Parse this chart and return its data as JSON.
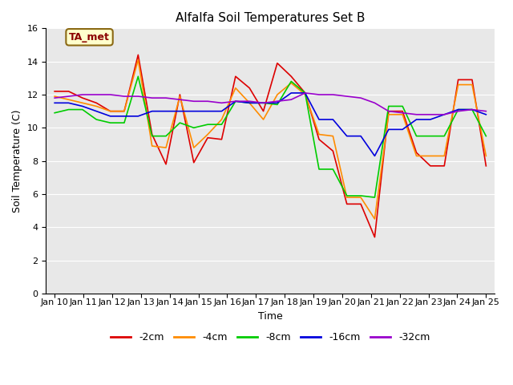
{
  "title": "Alfalfa Soil Temperatures Set B",
  "xlabel": "Time",
  "ylabel": "Soil Temperature (C)",
  "ylim": [
    0,
    16
  ],
  "yticks": [
    0,
    2,
    4,
    6,
    8,
    10,
    12,
    14,
    16
  ],
  "x_labels": [
    "Jan 10",
    "Jan 11",
    "Jan 12",
    "Jan 13",
    "Jan 14",
    "Jan 15",
    "Jan 16",
    "Jan 17",
    "Jan 18",
    "Jan 19",
    "Jan 20",
    "Jan 21",
    "Jan 22",
    "Jan 23",
    "Jan 24",
    "Jan 25"
  ],
  "bg_color": "#e8e8e8",
  "grid_color": "#ffffff",
  "series": [
    {
      "label": "-2cm",
      "color": "#dd0000",
      "data": [
        12.2,
        12.2,
        11.8,
        11.5,
        11.0,
        11.0,
        14.4,
        9.6,
        7.8,
        12.0,
        7.9,
        9.4,
        9.3,
        13.1,
        12.4,
        11.0,
        13.9,
        13.1,
        12.1,
        9.3,
        8.6,
        5.4,
        5.4,
        3.4,
        11.0,
        11.0,
        8.5,
        7.7,
        7.7,
        12.9,
        12.9,
        7.7
      ]
    },
    {
      "label": "-4cm",
      "color": "#ff8c00",
      "data": [
        11.9,
        11.7,
        11.5,
        11.3,
        11.0,
        11.0,
        14.1,
        8.9,
        8.8,
        11.9,
        8.8,
        9.6,
        10.5,
        12.4,
        11.5,
        10.5,
        12.0,
        12.7,
        12.0,
        9.6,
        9.5,
        5.8,
        5.8,
        4.5,
        10.8,
        10.8,
        8.3,
        8.3,
        8.3,
        12.6,
        12.6,
        8.3
      ]
    },
    {
      "label": "-8cm",
      "color": "#00cc00",
      "data": [
        10.9,
        11.1,
        11.1,
        10.5,
        10.3,
        10.3,
        13.1,
        9.5,
        9.5,
        10.3,
        10.0,
        10.2,
        10.2,
        11.6,
        11.5,
        11.5,
        11.4,
        12.8,
        12.1,
        7.5,
        7.5,
        5.9,
        5.9,
        5.8,
        11.3,
        11.3,
        9.5,
        9.5,
        9.5,
        11.1,
        11.1,
        9.5
      ]
    },
    {
      "label": "-16cm",
      "color": "#0000dd",
      "data": [
        11.5,
        11.5,
        11.3,
        11.0,
        10.7,
        10.7,
        10.7,
        11.0,
        11.0,
        11.0,
        11.0,
        11.0,
        11.0,
        11.6,
        11.5,
        11.5,
        11.5,
        12.1,
        12.1,
        10.5,
        10.5,
        9.5,
        9.5,
        8.3,
        9.9,
        9.9,
        10.5,
        10.5,
        10.8,
        11.1,
        11.1,
        10.8
      ]
    },
    {
      "label": "-32cm",
      "color": "#9900cc",
      "data": [
        11.8,
        11.9,
        12.0,
        12.0,
        12.0,
        11.9,
        11.9,
        11.8,
        11.8,
        11.7,
        11.6,
        11.6,
        11.5,
        11.6,
        11.6,
        11.5,
        11.6,
        11.7,
        12.1,
        12.0,
        12.0,
        11.9,
        11.8,
        11.5,
        11.0,
        10.9,
        10.8,
        10.8,
        10.8,
        11.0,
        11.1,
        11.0
      ]
    }
  ],
  "annotation_text": "TA_met",
  "annotation_color": "#8B0000",
  "annotation_bg": "#ffffcc",
  "annotation_edge": "#8B6914",
  "linewidth": 1.2,
  "title_fontsize": 11,
  "axis_label_fontsize": 9,
  "tick_fontsize": 8,
  "legend_fontsize": 9,
  "n_ticks": 16,
  "points_per_tick": 2
}
